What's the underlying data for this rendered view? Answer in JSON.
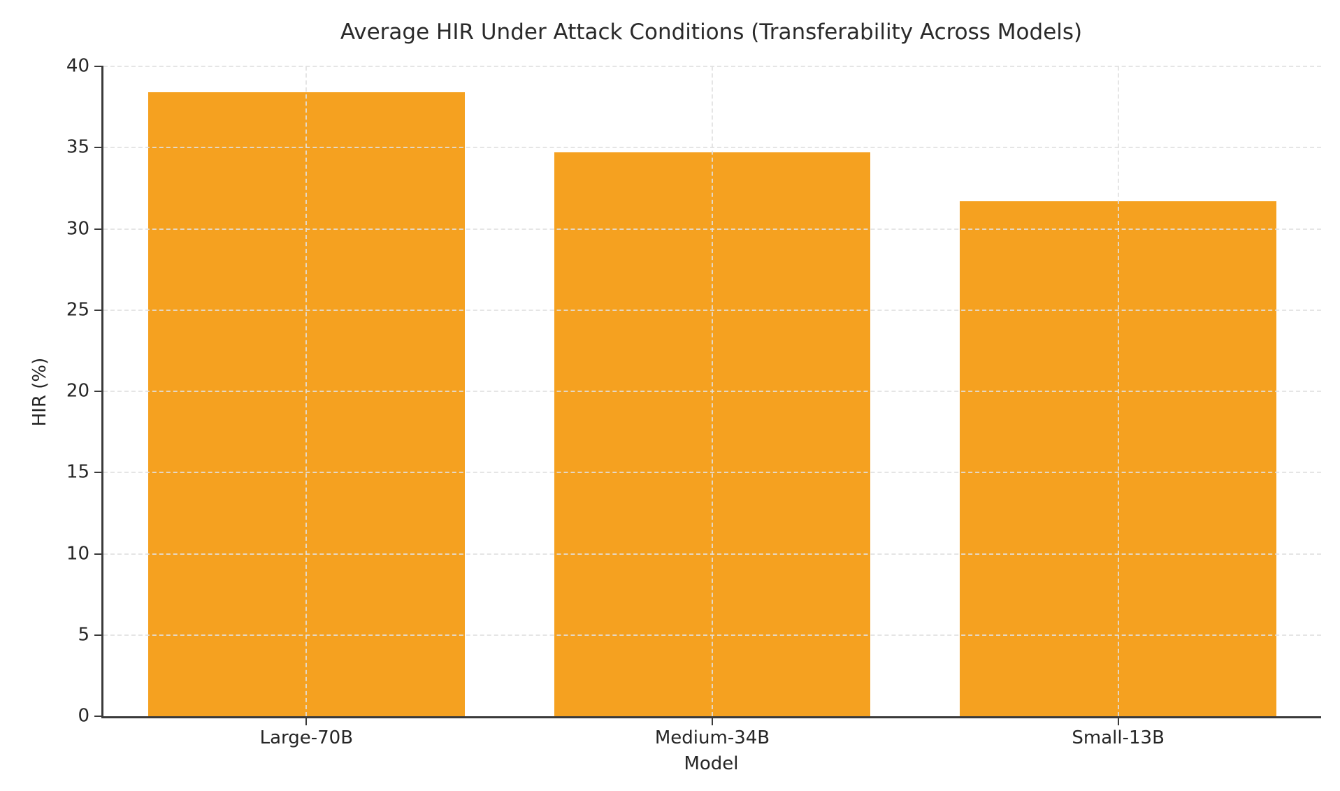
{
  "chart_data": {
    "type": "bar",
    "title": "Average HIR Under Attack Conditions (Transferability Across Models)",
    "xlabel": "Model",
    "ylabel": "HIR (%)",
    "categories": [
      "Large-70B",
      "Medium-34B",
      "Small-13B"
    ],
    "values": [
      38.4,
      34.7,
      31.7
    ],
    "ylim": [
      0,
      40
    ],
    "yticks": [
      0,
      5,
      10,
      15,
      20,
      25,
      30,
      35,
      40
    ],
    "bar_color": "#F5A120",
    "grid": true,
    "grid_style": "dashed",
    "grid_color": "#E0E0E0",
    "axis_color": "#3A3A3A",
    "text_color": "#262626",
    "background": "#FFFFFF",
    "legend": "none"
  }
}
